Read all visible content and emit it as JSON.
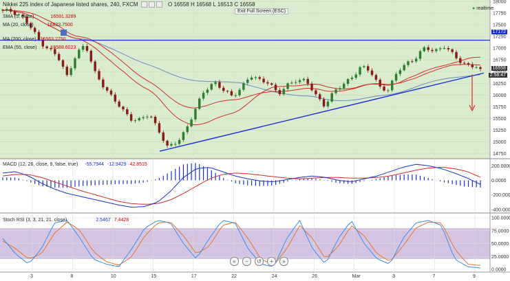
{
  "header": {
    "title": "Nikkei 225 index of Japanese listed shares, 240, FXCM",
    "o_label": "O",
    "o": "16558",
    "h_label": "H",
    "h": "16568",
    "l_label": "L",
    "l": "16513",
    "c_label": "C",
    "c": "16558",
    "fullscreen": "Exit Full Screen (ESC)",
    "realtime": "realtime"
  },
  "legend": {
    "sma5": "SMA (5, close)",
    "sma5_val": "16591.3289",
    "ma20": "MA (20, close)",
    "ma20_val": "16823.7500",
    "ma200": "MA (200, close)",
    "ma200_val": "16563.2750",
    "ema55": "EMA (55, close)",
    "ema55_val": "16588.6023",
    "macd": "MACD (12, 26, close, 9, false, true)",
    "macd_v1": "-55.7944",
    "macd_v2": "-12.9429",
    "macd_v3": "42.8515",
    "rsi": "Stoch RSI (3, 3, 21, 21, close)",
    "rsi_v1": "2.5467",
    "rsi_v2": "7.4428"
  },
  "tags": {
    "line": "17172",
    "last": "16558",
    "timer": "2:58:47"
  },
  "controls": {
    "left2": "«",
    "zoomout": "−",
    "reset": "↺",
    "zoomin": "+",
    "right2": "»"
  },
  "colors": {
    "up": "#2e7d32",
    "down": "#8b1a1a",
    "ma_red": "#d42a2a",
    "ma_blue": "#6a8ab8",
    "trend": "#1a2fcf",
    "macd_line": "#1a2fcf",
    "signal_line": "#d42a2a",
    "hist": "#1a2fcf",
    "rsi_band": "#d4c4e2"
  },
  "chart_data": [
    {
      "type": "candlestick",
      "title": "Nikkei 225 index of Japanese listed shares, 240, FXCM",
      "x_ticks": [
        "3",
        "8",
        "10",
        "15",
        "17",
        "22",
        "24",
        "26",
        "Mar",
        "3",
        "7",
        "9"
      ],
      "y_ticks": [
        14750,
        15000,
        15250,
        15500,
        15750,
        16000,
        16250,
        16500,
        16750,
        17000,
        17250,
        17500,
        17750,
        18000
      ],
      "ylim": [
        14640,
        18030
      ],
      "grid": true,
      "close_anchors": [
        17780,
        17800,
        17700,
        17450,
        17150,
        17000,
        16800,
        16400,
        16900,
        17050,
        16500,
        16200,
        15900,
        15700,
        15500,
        15450,
        15600,
        15250,
        14850,
        15000,
        15300,
        15700,
        16100,
        16300,
        16100,
        15950,
        16200,
        16400,
        16300,
        16300,
        16000,
        16200,
        16350,
        16300,
        16000,
        15800,
        16050,
        16200,
        16400,
        16600,
        16500,
        16200,
        16100,
        16500,
        16700,
        16800,
        17000,
        16950,
        17050,
        16850,
        16700,
        16630,
        16558
      ],
      "bars": 120,
      "horizontal_line": 17172,
      "trendline": [
        [
          14800,
          14800
        ],
        [
          16500,
          16500
        ]
      ],
      "moving_averages": {
        "sma5": 16591.3289,
        "ma20": 16823.75,
        "ma200": 16563.275,
        "ema55": 16588.6023
      },
      "last_price": 16558
    },
    {
      "type": "line",
      "title": "MACD (12, 26, close, 9, false, true)",
      "y_ticks": [
        200000,
        0,
        -200000,
        -400000
      ],
      "y_tick_labels": [
        "200.0000",
        "0.0000",
        "-200.0000",
        "-400.0000"
      ],
      "ylim": [
        -430000,
        250000
      ],
      "macd_anchors": [
        100,
        120,
        60,
        -40,
        -120,
        -180,
        -220,
        -260,
        -300,
        -340,
        -370,
        -360,
        -300,
        -150,
        40,
        160,
        180,
        120,
        60,
        20,
        -10,
        -20,
        10,
        40,
        60,
        40,
        0,
        -20,
        20,
        60,
        120,
        180,
        220,
        200,
        160,
        100,
        30,
        -55.79
      ],
      "signal_anchors": [
        60,
        80,
        80,
        40,
        -20,
        -80,
        -140,
        -190,
        -240,
        -290,
        -320,
        -330,
        -320,
        -270,
        -180,
        -80,
        20,
        80,
        100,
        90,
        70,
        50,
        30,
        20,
        30,
        40,
        40,
        30,
        30,
        40,
        60,
        100,
        140,
        170,
        180,
        160,
        120,
        42.85
      ],
      "last": {
        "macd": -55.7944,
        "histogram": -12.9429,
        "signal": 42.8515
      }
    },
    {
      "type": "line",
      "title": "Stoch RSI (3, 3, 21, 21, close)",
      "y_ticks": [
        100,
        75,
        50,
        25,
        0
      ],
      "y_tick_labels": [
        "100.0000",
        "75.0000",
        "50.0000",
        "25.0000",
        "0.0000"
      ],
      "ylim": [
        0,
        100
      ],
      "band": [
        20,
        80
      ],
      "k_anchors": [
        60,
        30,
        10,
        40,
        90,
        95,
        60,
        20,
        10,
        5,
        40,
        80,
        95,
        90,
        50,
        20,
        60,
        95,
        90,
        40,
        10,
        5,
        60,
        95,
        40,
        10,
        60,
        95,
        50,
        20,
        10,
        60,
        90,
        95,
        85,
        20,
        5,
        2.55
      ],
      "d_anchors": [
        55,
        40,
        20,
        30,
        70,
        92,
        75,
        35,
        15,
        8,
        25,
        65,
        90,
        92,
        65,
        30,
        45,
        85,
        92,
        60,
        20,
        8,
        40,
        85,
        60,
        20,
        45,
        85,
        65,
        30,
        15,
        45,
        80,
        92,
        90,
        40,
        10,
        7.44
      ],
      "last": {
        "k": 2.5467,
        "d": 7.4428
      }
    }
  ]
}
